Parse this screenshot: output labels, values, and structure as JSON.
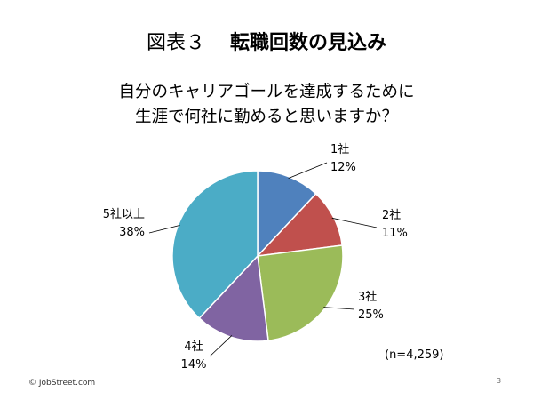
{
  "slide": {
    "figure_number": "図表３",
    "title": "転職回数の見込み",
    "question_line1": "自分のキャリアゴールを達成するために",
    "question_line2": "生涯で何社に勤めると思いますか？",
    "sample_note": "(n=4,259)",
    "copyright": "© JobStreet.com",
    "page_number": "3"
  },
  "chart_data": {
    "type": "pie",
    "title": "自分のキャリアゴールを達成するために 生涯で何社に勤めると思いますか？",
    "start": "12 o'clock, clockwise",
    "slices": [
      {
        "label": "1社",
        "value": 12,
        "value_label": "12%",
        "color": "#4F81BD"
      },
      {
        "label": "2社",
        "value": 11,
        "value_label": "11%",
        "color": "#C0504D"
      },
      {
        "label": "3社",
        "value": 25,
        "value_label": "25%",
        "color": "#9BBB59"
      },
      {
        "label": "4社",
        "value": 14,
        "value_label": "14%",
        "color": "#8064A2"
      },
      {
        "label": "5社以上",
        "value": 38,
        "value_label": "38%",
        "color": "#4BACC6"
      }
    ]
  }
}
